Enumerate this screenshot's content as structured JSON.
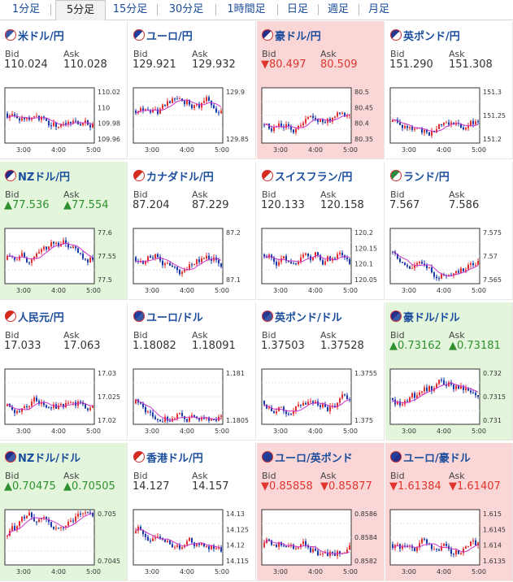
{
  "tabs": [
    {
      "label": "1分足",
      "active": false
    },
    {
      "label": "5分足",
      "active": true
    },
    {
      "label": "15分足",
      "active": false
    },
    {
      "label": "30分足",
      "active": false
    },
    {
      "label": "1時間足",
      "active": false
    },
    {
      "label": "日足",
      "active": false
    },
    {
      "label": "週足",
      "active": false
    },
    {
      "label": "月足",
      "active": false
    }
  ],
  "colors": {
    "up_candle": "#e03030",
    "down_candle": "#1a3aa8",
    "ma_line": "#cc33cc",
    "link": "#1a4d9c",
    "down_bg": "#fbd6d6",
    "up_bg": "#e3f6dc"
  },
  "labels": {
    "bid": "Bid",
    "ask": "Ask"
  },
  "time_ticks": [
    "3:00",
    "4:00",
    "5:00"
  ],
  "pairs": [
    {
      "title": "米ドル/円",
      "flag": "us-jp-flag-icon",
      "bid": "110.024",
      "ask": "110.028",
      "state": "none",
      "ticks": [
        "110.02",
        "110",
        "109.98",
        "109.96"
      ]
    },
    {
      "title": "ユーロ/円",
      "flag": "eu-jp-flag-icon",
      "bid": "129.921",
      "ask": "129.932",
      "state": "none",
      "ticks": [
        "129.9",
        "129.85"
      ]
    },
    {
      "title": "豪ドル/円",
      "flag": "au-jp-flag-icon",
      "bid": "▼80.497",
      "ask": "80.509",
      "state": "down",
      "ticks": [
        "80.5",
        "80.45",
        "80.4",
        "80.35"
      ]
    },
    {
      "title": "英ポンド/円",
      "flag": "gb-jp-flag-icon",
      "bid": "151.290",
      "ask": "151.308",
      "state": "none",
      "ticks": [
        "151.3",
        "151.25",
        "151.2"
      ]
    },
    {
      "title": "NZドル/円",
      "flag": "nz-jp-flag-icon",
      "bid": "▲77.536",
      "ask": "▲77.554",
      "state": "up",
      "ticks": [
        "77.6",
        "77.55",
        "77.5"
      ]
    },
    {
      "title": "カナダドル/円",
      "flag": "ca-jp-flag-icon",
      "bid": "87.204",
      "ask": "87.229",
      "state": "none",
      "ticks": [
        "87.2",
        "87.1"
      ]
    },
    {
      "title": "スイスフラン/円",
      "flag": "ch-jp-flag-icon",
      "bid": "120.133",
      "ask": "120.158",
      "state": "none",
      "ticks": [
        "120.2",
        "120.15",
        "120.1",
        "120.05"
      ]
    },
    {
      "title": "ランド/円",
      "flag": "za-jp-flag-icon",
      "bid": "7.567",
      "ask": "7.586",
      "state": "none",
      "ticks": [
        "7.575",
        "7.57",
        "7.565"
      ]
    },
    {
      "title": "人民元/円",
      "flag": "cn-jp-flag-icon",
      "bid": "17.033",
      "ask": "17.063",
      "state": "none",
      "ticks": [
        "17.03",
        "17.025",
        "17.02"
      ]
    },
    {
      "title": "ユーロ/ドル",
      "flag": "eu-us-flag-icon",
      "bid": "1.18082",
      "ask": "1.18091",
      "state": "none",
      "ticks": [
        "1.181",
        "1.1805"
      ]
    },
    {
      "title": "英ポンド/ドル",
      "flag": "gb-us-flag-icon",
      "bid": "1.37503",
      "ask": "1.37528",
      "state": "none",
      "ticks": [
        "1.3755",
        "1.375"
      ]
    },
    {
      "title": "豪ドル/ドル",
      "flag": "au-us-flag-icon",
      "bid": "▲0.73162",
      "ask": "▲0.73181",
      "state": "up",
      "ticks": [
        "0.732",
        "0.7315",
        "0.731"
      ]
    },
    {
      "title": "NZドル/ドル",
      "flag": "nz-us-flag-icon",
      "bid": "▲0.70475",
      "ask": "▲0.70505",
      "state": "up",
      "ticks": [
        "0.705",
        "0.7045"
      ]
    },
    {
      "title": "香港ドル/円",
      "flag": "hk-jp-flag-icon",
      "bid": "14.127",
      "ask": "14.157",
      "state": "none",
      "ticks": [
        "14.13",
        "14.125",
        "14.12",
        "14.115"
      ]
    },
    {
      "title": "ユーロ/英ポンド",
      "flag": "eu-gb-flag-icon",
      "bid": "▼0.85858",
      "ask": "▼0.85877",
      "state": "down",
      "ticks": [
        "0.8586",
        "0.8584",
        "0.8582"
      ]
    },
    {
      "title": "ユーロ/豪ドル",
      "flag": "eu-au-flag-icon",
      "bid": "▼1.61384",
      "ask": "▼1.61407",
      "state": "down",
      "ticks": [
        "1.615",
        "1.6145",
        "1.614",
        "1.6135"
      ]
    }
  ]
}
